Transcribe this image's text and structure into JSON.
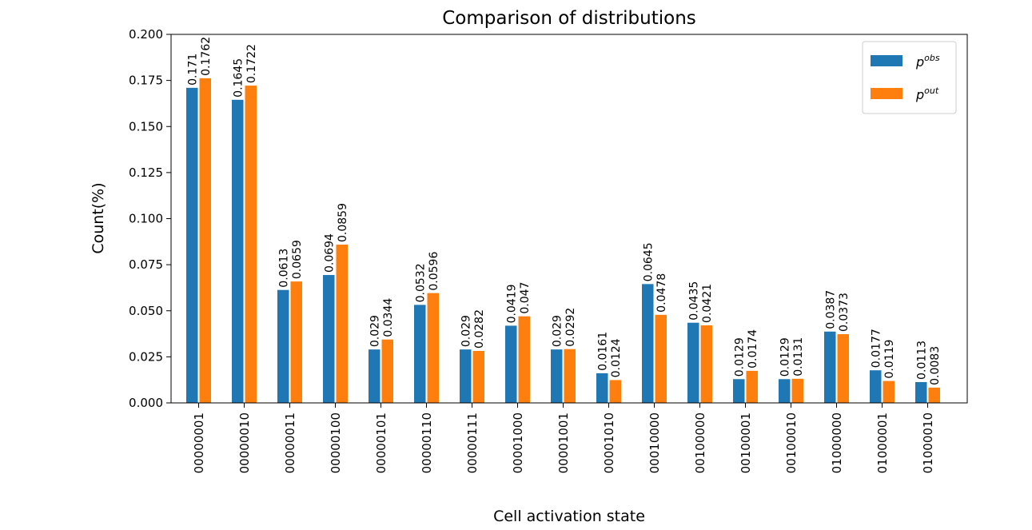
{
  "chart_data": {
    "type": "bar",
    "title": "Comparison of distributions",
    "xlabel": "Cell activation state",
    "ylabel": "Count(%)",
    "ylim": [
      0,
      0.2
    ],
    "yticks": [
      "0.000",
      "0.025",
      "0.050",
      "0.075",
      "0.100",
      "0.125",
      "0.150",
      "0.175",
      "0.200"
    ],
    "grid": false,
    "legend_position": "top-right",
    "categories": [
      "00000001",
      "00000010",
      "00000011",
      "00000100",
      "00000101",
      "00000110",
      "00000111",
      "00001000",
      "00001001",
      "00001010",
      "00010000",
      "00100000",
      "00100001",
      "00100010",
      "01000000",
      "01000001",
      "01000010"
    ],
    "series": [
      {
        "name": "p",
        "legend_sup": "obs",
        "color": "#1f77b4",
        "values": [
          0.171,
          0.1645,
          0.0613,
          0.0694,
          0.029,
          0.0532,
          0.029,
          0.0419,
          0.029,
          0.0161,
          0.0645,
          0.0435,
          0.0129,
          0.0129,
          0.0387,
          0.0177,
          0.0113
        ],
        "labels": [
          "0.171",
          "0.1645",
          "0.0613",
          "0.0694",
          "0.029",
          "0.0532",
          "0.029",
          "0.0419",
          "0.029",
          "0.0161",
          "0.0645",
          "0.0435",
          "0.0129",
          "0.0129",
          "0.0387",
          "0.0177",
          "0.0113"
        ]
      },
      {
        "name": "p",
        "legend_sup": "out",
        "color": "#ff7f0e",
        "values": [
          0.1762,
          0.1722,
          0.0659,
          0.0859,
          0.0344,
          0.0596,
          0.0282,
          0.047,
          0.0292,
          0.0124,
          0.0478,
          0.0421,
          0.0174,
          0.0131,
          0.0373,
          0.0119,
          0.0083
        ],
        "labels": [
          "0.1762",
          "0.1722",
          "0.0659",
          "0.0859",
          "0.0344",
          "0.0596",
          "0.0282",
          "0.047",
          "0.0292",
          "0.0124",
          "0.0478",
          "0.0421",
          "0.0174",
          "0.0131",
          "0.0373",
          "0.0119",
          "0.0083"
        ]
      }
    ]
  }
}
